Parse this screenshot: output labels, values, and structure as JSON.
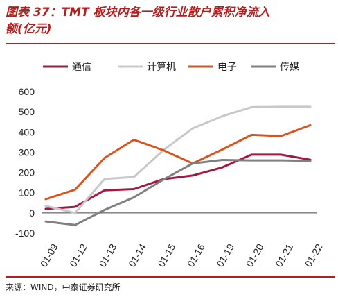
{
  "title": "图表 37：TMT 板块内各一级行业散户累积净流入\n额(亿元)",
  "source": "来源：WIND，中泰证券研究所",
  "chart_data": {
    "type": "line",
    "categories": [
      "01-09",
      "01-12",
      "01-13",
      "01-14",
      "01-15",
      "01-16",
      "01-19",
      "01-20",
      "01-21",
      "01-22"
    ],
    "ylim": [
      -100,
      600
    ],
    "yticks": [
      600,
      500,
      400,
      300,
      200,
      100,
      0,
      -100
    ],
    "grid": false,
    "legend_position": "top",
    "series": [
      {
        "name": "通信",
        "color": "#a8163f",
        "values": [
          20,
          30,
          112,
          118,
          167,
          185,
          225,
          288,
          288,
          263
        ]
      },
      {
        "name": "计算机",
        "color": "#c8c8c8",
        "values": [
          35,
          0,
          168,
          178,
          310,
          418,
          478,
          523,
          525,
          525
        ]
      },
      {
        "name": "电子",
        "color": "#d9531e",
        "values": [
          68,
          115,
          272,
          362,
          310,
          245,
          313,
          386,
          380,
          434
        ]
      },
      {
        "name": "传媒",
        "color": "#7f7f7f",
        "values": [
          -42,
          -60,
          15,
          77,
          165,
          245,
          262,
          260,
          260,
          258
        ]
      }
    ]
  }
}
